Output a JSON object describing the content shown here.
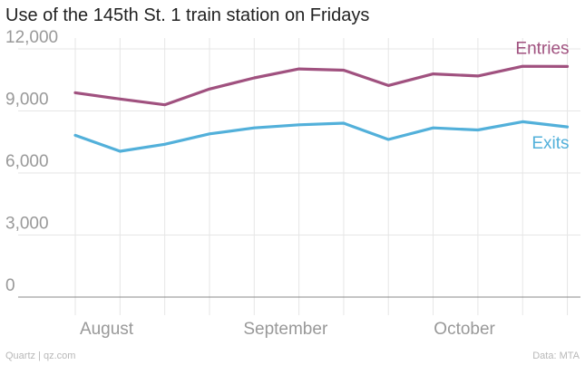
{
  "chart_data": {
    "type": "line",
    "title": "Use of the 145th St. 1 train station on Fridays",
    "xlabel": "",
    "ylabel": "",
    "ylim": [
      0,
      12000
    ],
    "yticks": [
      0,
      3000,
      6000,
      9000,
      12000
    ],
    "ytick_labels": [
      "0",
      "3,000",
      "6,000",
      "9,000",
      "12,000"
    ],
    "x": [
      1,
      2,
      3,
      4,
      5,
      6,
      7,
      8,
      9,
      10,
      11,
      12
    ],
    "xlim": [
      1,
      12.05
    ],
    "month_labels": [
      {
        "label": "August",
        "x": 1.7
      },
      {
        "label": "September",
        "x": 5.7
      },
      {
        "label": "October",
        "x": 9.7
      }
    ],
    "series": [
      {
        "name": "Entries",
        "color": "#a0517f",
        "values": [
          9880,
          9580,
          9300,
          10060,
          10600,
          11030,
          10970,
          10230,
          10790,
          10690,
          11160,
          11150
        ]
      },
      {
        "name": "Exits",
        "color": "#52b0da",
        "values": [
          7820,
          7050,
          7390,
          7890,
          8180,
          8330,
          8410,
          7620,
          8180,
          8080,
          8480,
          8230
        ]
      }
    ],
    "grid": true,
    "axis_color": "#888888",
    "grid_color": "#e6e6e6"
  },
  "footer": {
    "source_left": "Quartz | qz.com",
    "source_right": "Data: MTA"
  }
}
